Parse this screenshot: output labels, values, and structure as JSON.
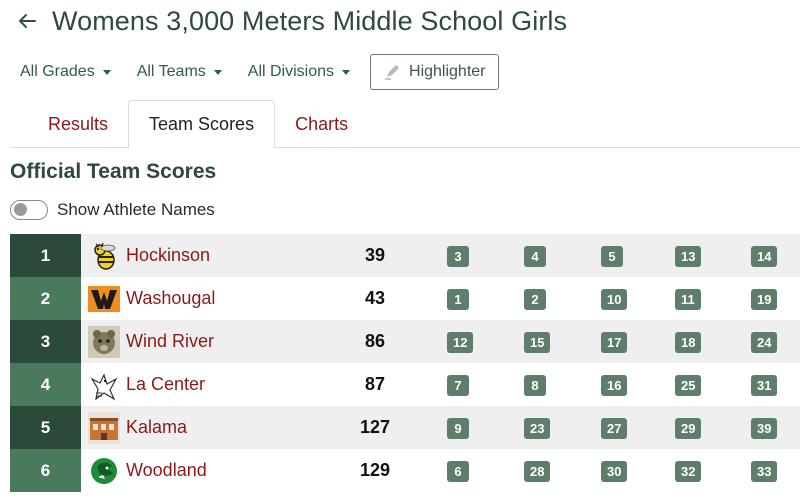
{
  "header": {
    "title": "Womens 3,000 Meters Middle School Girls",
    "back_icon": "arrow-left-icon"
  },
  "filters": {
    "grades": "All Grades",
    "teams": "All Teams",
    "divisions": "All Divisions",
    "highlighter": "Highlighter"
  },
  "tabs": [
    {
      "label": "Results",
      "active": false
    },
    {
      "label": "Team Scores",
      "active": true
    },
    {
      "label": "Charts",
      "active": false
    }
  ],
  "section_title": "Official Team Scores",
  "toggle": {
    "label": "Show Athlete Names",
    "on": false
  },
  "colors": {
    "rank_dark": "#2c4a3a",
    "rank_light": "#4a7a5e",
    "place_badge": "#5e7d6a",
    "team_link": "#8b1a1a"
  },
  "teams": [
    {
      "rank": "1",
      "name": "Hockinson",
      "score": "39",
      "places": [
        "3",
        "4",
        "5",
        "13",
        "14"
      ],
      "logo": "hornet-logo"
    },
    {
      "rank": "2",
      "name": "Washougal",
      "score": "43",
      "places": [
        "1",
        "2",
        "10",
        "11",
        "19"
      ],
      "logo": "w-letter-logo"
    },
    {
      "rank": "3",
      "name": "Wind River",
      "score": "86",
      "places": [
        "12",
        "15",
        "17",
        "18",
        "24"
      ],
      "logo": "bear-logo"
    },
    {
      "rank": "4",
      "name": "La Center",
      "score": "87",
      "places": [
        "7",
        "8",
        "16",
        "25",
        "31"
      ],
      "logo": "eagle-logo"
    },
    {
      "rank": "5",
      "name": "Kalama",
      "score": "127",
      "places": [
        "9",
        "23",
        "27",
        "29",
        "39"
      ],
      "logo": "building-logo"
    },
    {
      "rank": "6",
      "name": "Woodland",
      "score": "129",
      "places": [
        "6",
        "28",
        "30",
        "32",
        "33"
      ],
      "logo": "beaver-logo"
    }
  ]
}
